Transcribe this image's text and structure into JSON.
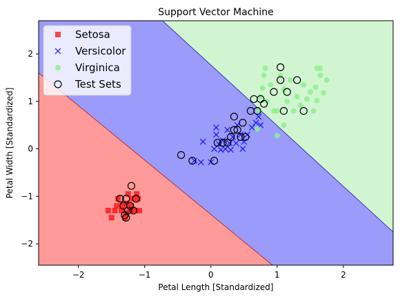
{
  "chart_data": {
    "type": "scatter",
    "title": "Support Vector Machine",
    "xlabel": "Petal Length [Standardized]",
    "ylabel": "Petal Width [Standardized]",
    "xlim": [
      -2.6,
      2.75
    ],
    "ylim": [
      -2.45,
      2.7
    ],
    "xticks": [
      -2,
      -1,
      0,
      1,
      2
    ],
    "yticks": [
      -2,
      -1,
      0,
      1,
      2
    ],
    "grid": false,
    "legend_position": "top-left",
    "regions": [
      {
        "name": "Setosa",
        "color": "#ff9a9a",
        "boundary_color": "#c83c3c",
        "polygon": [
          [
            -2.6,
            1.6
          ],
          [
            -2.6,
            -2.45
          ],
          [
            0.93,
            -2.45
          ]
        ]
      },
      {
        "name": "Versicolor",
        "color": "#9b9bfb",
        "boundary_color": "#4646b4",
        "polygon": [
          [
            -2.6,
            1.6
          ],
          [
            0.93,
            -2.45
          ],
          [
            2.75,
            -2.45
          ],
          [
            2.75,
            -1.75
          ],
          [
            -0.73,
            2.7
          ],
          [
            -2.6,
            2.7
          ]
        ]
      },
      {
        "name": "Virginica",
        "color": "#d1f5d1",
        "polygon": [
          [
            -0.73,
            2.7
          ],
          [
            2.75,
            2.7
          ],
          [
            2.75,
            -1.75
          ]
        ]
      }
    ],
    "series": [
      {
        "name": "Setosa",
        "marker": "square",
        "color": "#ff0000",
        "points": [
          [
            -1.55,
            -1.3
          ],
          [
            -1.5,
            -1.45
          ],
          [
            -1.45,
            -1.3
          ],
          [
            -1.42,
            -1.2
          ],
          [
            -1.4,
            -1.05
          ],
          [
            -1.35,
            -1.3
          ],
          [
            -1.33,
            -1.2
          ],
          [
            -1.3,
            -1.45
          ],
          [
            -1.28,
            -1.35
          ],
          [
            -1.27,
            -1.15
          ],
          [
            -1.25,
            -0.95
          ],
          [
            -1.22,
            -1.3
          ],
          [
            -1.2,
            -1.2
          ],
          [
            -1.18,
            -1.05
          ],
          [
            -1.15,
            -1.3
          ],
          [
            -1.12,
            -0.95
          ],
          [
            -1.1,
            -1.05
          ],
          [
            -1.08,
            -1.3
          ]
        ]
      },
      {
        "name": "Versicolor",
        "marker": "x",
        "color": "#0000ff",
        "points": [
          [
            -0.25,
            -0.25
          ],
          [
            -0.15,
            -0.28
          ],
          [
            -0.12,
            0.15
          ],
          [
            0.0,
            -0.28
          ],
          [
            0.05,
            0.0
          ],
          [
            0.08,
            0.3
          ],
          [
            0.12,
            0.1
          ],
          [
            0.15,
            -0.02
          ],
          [
            0.18,
            0.18
          ],
          [
            0.22,
            0.0
          ],
          [
            0.25,
            0.4
          ],
          [
            0.28,
            0.12
          ],
          [
            0.3,
            -0.02
          ],
          [
            0.33,
            0.25
          ],
          [
            0.38,
            0.12
          ],
          [
            0.4,
            0.5
          ],
          [
            0.45,
            0.3
          ],
          [
            0.48,
            0.0
          ],
          [
            0.5,
            0.15
          ],
          [
            0.55,
            0.3
          ],
          [
            0.62,
            0.45
          ],
          [
            0.68,
            0.55
          ],
          [
            0.72,
            0.68
          ],
          [
            0.75,
            0.5
          ],
          [
            0.08,
            0.45
          ]
        ]
      },
      {
        "name": "Virginica",
        "marker": "circle",
        "color": "#90ee90",
        "points": [
          [
            0.7,
            0.42
          ],
          [
            0.72,
            0.8
          ],
          [
            0.75,
            1.1
          ],
          [
            0.78,
            1.28
          ],
          [
            0.8,
            1.55
          ],
          [
            0.85,
            1.0
          ],
          [
            0.9,
            1.35
          ],
          [
            0.95,
            0.8
          ],
          [
            1.0,
            0.28
          ],
          [
            1.05,
            1.55
          ],
          [
            1.1,
            1.25
          ],
          [
            1.1,
            0.5
          ],
          [
            1.15,
            1.0
          ],
          [
            1.2,
            1.45
          ],
          [
            1.25,
            0.8
          ],
          [
            1.3,
            1.1
          ],
          [
            1.35,
            0.92
          ],
          [
            1.4,
            1.35
          ],
          [
            1.45,
            1.05
          ],
          [
            1.5,
            1.2
          ],
          [
            1.55,
            0.8
          ],
          [
            1.58,
            1.3
          ],
          [
            1.6,
            1.02
          ],
          [
            1.65,
            1.55
          ],
          [
            1.7,
            1.18
          ],
          [
            1.75,
            1.45
          ],
          [
            1.6,
            1.7
          ],
          [
            1.65,
            1.7
          ],
          [
            1.0,
            0.8
          ],
          [
            0.82,
            1.7
          ]
        ]
      },
      {
        "name": "Test Sets",
        "marker": "circle-open",
        "color": "#000000",
        "points": [
          [
            -1.37,
            -1.05
          ],
          [
            -1.32,
            -1.2
          ],
          [
            -1.3,
            -1.4
          ],
          [
            -1.28,
            -1.05
          ],
          [
            -1.25,
            -1.3
          ],
          [
            -1.22,
            -1.2
          ],
          [
            -1.2,
            -0.78
          ],
          [
            -1.17,
            -1.3
          ],
          [
            -1.13,
            -1.05
          ],
          [
            -1.28,
            -1.45
          ],
          [
            -0.45,
            -0.13
          ],
          [
            -0.28,
            -0.25
          ],
          [
            0.05,
            -0.25
          ],
          [
            0.1,
            0.13
          ],
          [
            0.18,
            0.13
          ],
          [
            0.25,
            0.13
          ],
          [
            0.3,
            0.25
          ],
          [
            0.35,
            0.4
          ],
          [
            0.4,
            0.4
          ],
          [
            0.45,
            0.25
          ],
          [
            0.48,
            0.55
          ],
          [
            0.52,
            0.25
          ],
          [
            0.35,
            0.68
          ],
          [
            0.6,
            0.8
          ],
          [
            0.65,
            1.05
          ],
          [
            0.7,
            0.8
          ],
          [
            0.75,
            1.05
          ],
          [
            0.8,
            0.95
          ],
          [
            0.95,
            1.2
          ],
          [
            1.05,
            1.45
          ],
          [
            1.05,
            1.72
          ],
          [
            1.1,
            0.8
          ],
          [
            1.15,
            1.2
          ],
          [
            1.3,
            1.45
          ],
          [
            1.4,
            0.8
          ]
        ]
      }
    ],
    "legend": [
      "Setosa",
      "Versicolor",
      "Virginica",
      "Test Sets"
    ]
  }
}
